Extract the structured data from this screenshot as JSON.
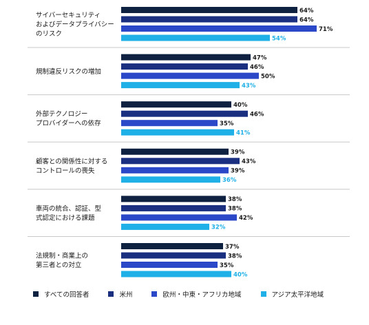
{
  "chart_data": {
    "type": "bar",
    "orientation": "horizontal",
    "categories": [
      [
        "サイバーセキュリティ",
        "およびデータプライバシー",
        "のリスク"
      ],
      [
        "規制違反リスクの増加"
      ],
      [
        "外部テクノロジー",
        "プロバイダーへの依存"
      ],
      [
        "顧客との関係性に対する",
        "コントロールの喪失"
      ],
      [
        "車両の統合、認証、型",
        "式認定における課題"
      ],
      [
        "法規制・商業上の",
        "第三者との対立"
      ]
    ],
    "series": [
      {
        "name": "すべての回答者",
        "color": "#0f2140",
        "values": [
          64,
          47,
          40,
          39,
          38,
          37
        ],
        "labels": [
          "64%",
          "47%",
          "40%",
          "39%",
          "38%",
          "37%"
        ]
      },
      {
        "name": "米州",
        "color": "#1a2f80",
        "values": [
          64,
          46,
          46,
          43,
          38,
          38
        ],
        "labels": [
          "64%",
          "46%",
          "46%",
          "43%",
          "38%",
          "38%"
        ]
      },
      {
        "name": "欧州・中東・アフリカ地域",
        "color": "#2a48c7",
        "values": [
          71,
          50,
          35,
          39,
          42,
          35
        ],
        "labels": [
          "71%",
          "50%",
          "35%",
          "39%",
          "42%",
          "35%"
        ]
      },
      {
        "name": "アジア太平洋地域",
        "color": "#1eb0e6",
        "values": [
          54,
          43,
          41,
          36,
          32,
          40
        ],
        "labels": [
          "54%",
          "43%",
          "41%",
          "36%",
          "32%",
          "40%"
        ]
      }
    ],
    "xlim": [
      0,
      100
    ],
    "legend_position": "bottom",
    "grid": false
  }
}
